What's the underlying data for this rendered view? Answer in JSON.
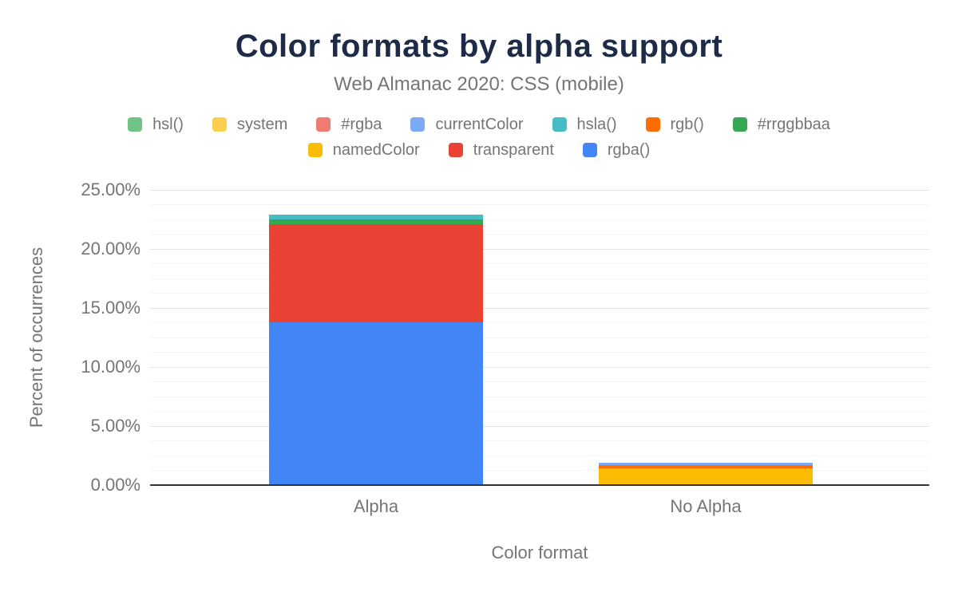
{
  "chart": {
    "title": "Color formats by alpha support",
    "subtitle": "Web Almanac 2020: CSS (mobile)",
    "xlabel": "Color format",
    "ylabel": "Percent of occurrences"
  },
  "chart_data": {
    "type": "bar",
    "stacked": true,
    "title": "Color formats by alpha support",
    "subtitle": "Web Almanac 2020: CSS (mobile)",
    "xlabel": "Color format",
    "ylabel": "Percent of occurrences",
    "categories": [
      "Alpha",
      "No Alpha"
    ],
    "series": [
      {
        "name": "hsl()",
        "color": "#71C287",
        "values": [
          0,
          0
        ]
      },
      {
        "name": "system",
        "color": "#FCD04F",
        "values": [
          0,
          0
        ]
      },
      {
        "name": "#rgba",
        "color": "#F07B72",
        "values": [
          0,
          0
        ]
      },
      {
        "name": "currentColor",
        "color": "#7BAAF7",
        "values": [
          0,
          0.24
        ]
      },
      {
        "name": "hsla()",
        "color": "#46BDC6",
        "values": [
          0.4,
          0
        ]
      },
      {
        "name": "rgb()",
        "color": "#FF6D01",
        "values": [
          0,
          0.27
        ]
      },
      {
        "name": "#rrggbbaa",
        "color": "#34A853",
        "values": [
          0.4,
          0
        ]
      },
      {
        "name": "namedColor",
        "color": "#FBBC04",
        "values": [
          0,
          1.39
        ]
      },
      {
        "name": "transparent",
        "color": "#EA4335",
        "values": [
          8.31,
          0
        ]
      },
      {
        "name": "rgba()",
        "color": "#4285F4",
        "values": [
          13.78,
          0
        ]
      }
    ],
    "stack_order": "last series at bottom (reverse of legend order)",
    "category_totals": [
      22.89,
      1.9
    ],
    "ylim": [
      0,
      25
    ],
    "y_ticks": [
      {
        "value": 0,
        "label": "0.00%"
      },
      {
        "value": 5,
        "label": "5.00%"
      },
      {
        "value": 10,
        "label": "10.00%"
      },
      {
        "value": 15,
        "label": "15.00%"
      },
      {
        "value": 20,
        "label": "20.00%"
      },
      {
        "value": 25,
        "label": "25.00%"
      }
    ],
    "y_minor_step": 1.25,
    "grid": true,
    "legend_position": "top",
    "legend_rows": [
      [
        "hsl()",
        "system",
        "#rgba",
        "currentColor",
        "hsla()",
        "rgb()",
        "#rrggbbaa"
      ],
      [
        "namedColor",
        "transparent",
        "rgba()"
      ]
    ]
  },
  "colors": {
    "title_text": "#1e2b47",
    "muted_text": "#757575",
    "axis_line": "#333333",
    "grid_major": "#e4e4e4",
    "grid_minor": "#f4f4f4",
    "background": "#ffffff"
  }
}
